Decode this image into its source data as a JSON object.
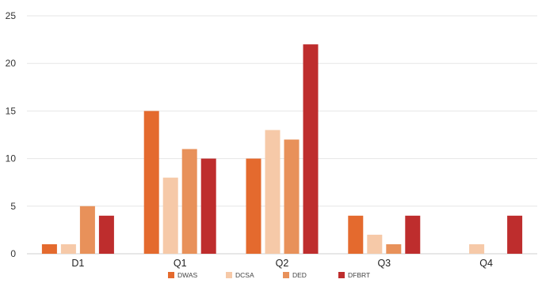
{
  "chart_data": {
    "type": "bar",
    "categories": [
      "D1",
      "Q1",
      "Q2",
      "Q3",
      "Q4"
    ],
    "series": [
      {
        "name": "DWAS",
        "color": "#E46A2E",
        "values": [
          1,
          15,
          10,
          4,
          0
        ]
      },
      {
        "name": "DCSA",
        "color": "#F6C9A8",
        "values": [
          1,
          8,
          13,
          2,
          1
        ]
      },
      {
        "name": "DED",
        "color": "#E8915A",
        "values": [
          5,
          11,
          12,
          1,
          0
        ]
      },
      {
        "name": "DFBRT",
        "color": "#BE2D2D",
        "values": [
          4,
          10,
          22,
          4,
          4
        ]
      }
    ],
    "ylim": [
      0,
      25
    ],
    "yticks": [
      0,
      5,
      10,
      15,
      20,
      25
    ],
    "grid": true,
    "legend": "bottom",
    "title": "",
    "xlabel": "",
    "ylabel": ""
  }
}
